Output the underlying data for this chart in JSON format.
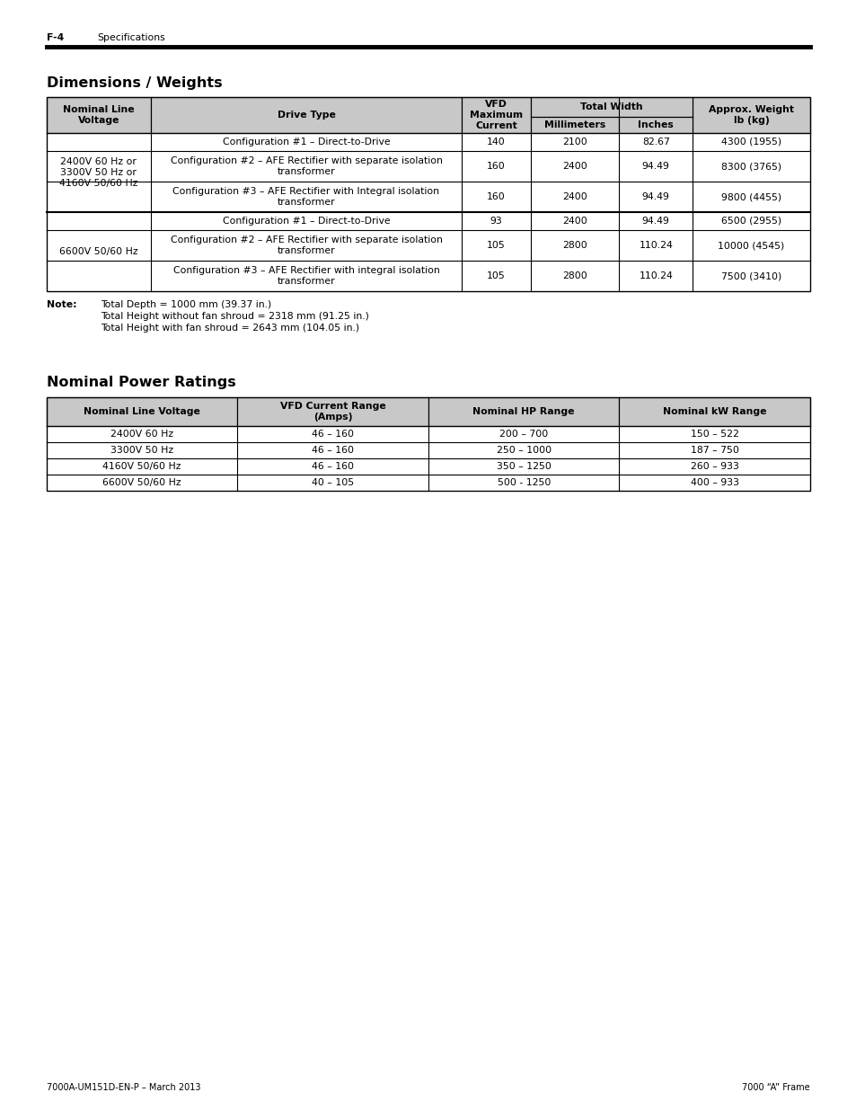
{
  "page_label": "F-4",
  "page_label_sub": "Specifications",
  "footer_left": "7000A-UM151D-EN-P – March 2013",
  "footer_right": "7000 “A” Frame",
  "section1_title": "Dimensions / Weights",
  "table1_rows": [
    [
      "2400V 60 Hz or\n3300V 50 Hz or\n4160V 50/60 Hz",
      "Configuration #1 – Direct-to-Drive",
      "140",
      "2100",
      "82.67",
      "4300 (1955)"
    ],
    [
      "2400V 60 Hz or\n3300V 50 Hz or\n4160V 50/60 Hz",
      "Configuration #2 – AFE Rectifier with separate isolation\ntransformer",
      "160",
      "2400",
      "94.49",
      "8300 (3765)"
    ],
    [
      "2400V 60 Hz or\n3300V 50 Hz or\n4160V 50/60 Hz",
      "Configuration #3 – AFE Rectifier with Integral isolation\ntransformer",
      "160",
      "2400",
      "94.49",
      "9800 (4455)"
    ],
    [
      "6600V 50/60 Hz",
      "Configuration #1 – Direct-to-Drive",
      "93",
      "2400",
      "94.49",
      "6500 (2955)"
    ],
    [
      "6600V 50/60 Hz",
      "Configuration #2 – AFE Rectifier with separate isolation\ntransformer",
      "105",
      "2800",
      "110.24",
      "10000 (4545)"
    ],
    [
      "6600V 50/60 Hz",
      "Configuration #3 – AFE Rectifier with integral isolation\ntransformer",
      "105",
      "2800",
      "110.24",
      "7500 (3410)"
    ]
  ],
  "note_label": "Note:",
  "note_lines": [
    "Total Depth = 1000 mm (39.37 in.)",
    "Total Height without fan shroud = 2318 mm (91.25 in.)",
    "Total Height with fan shroud = 2643 mm (104.05 in.)"
  ],
  "section2_title": "Nominal Power Ratings",
  "table2_headers": [
    "Nominal Line Voltage",
    "VFD Current Range\n(Amps)",
    "Nominal HP Range",
    "Nominal kW Range"
  ],
  "table2_rows": [
    [
      "2400V 60 Hz",
      "46 – 160",
      "200 – 700",
      "150 – 522"
    ],
    [
      "3300V 50 Hz",
      "46 – 160",
      "250 – 1000",
      "187 – 750"
    ],
    [
      "4160V 50/60 Hz",
      "46 – 160",
      "350 – 1250",
      "260 – 933"
    ],
    [
      "6600V 50/60 Hz",
      "40 – 105",
      "500 - 1250",
      "400 – 933"
    ]
  ],
  "header_bg": "#c8c8c8",
  "bg_color": "#ffffff",
  "font_size_body": 7.8,
  "font_size_header": 7.8,
  "font_size_title": 11.5,
  "font_size_footer": 7.0,
  "font_size_pagelabel": 7.8,
  "font_size_note": 7.8
}
